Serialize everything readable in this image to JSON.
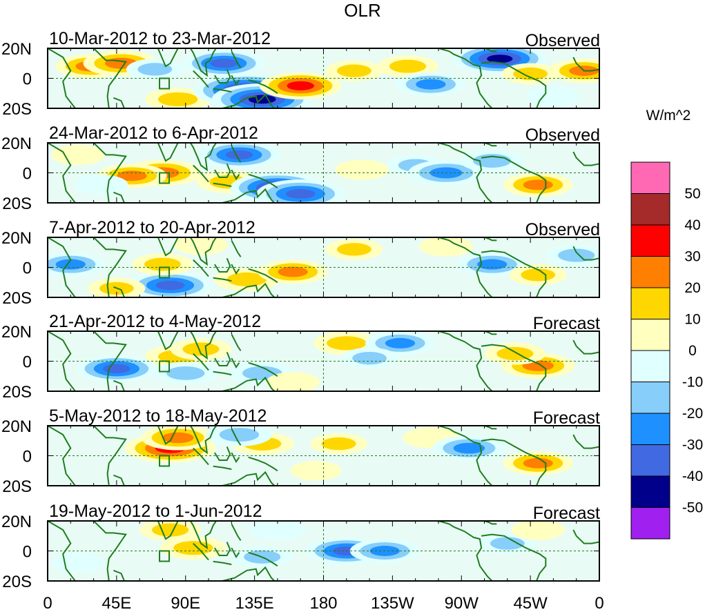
{
  "chart_data": {
    "type": "heatmap",
    "title": "OLR",
    "units": "W/m^2",
    "x_tick_labels": [
      "0",
      "45E",
      "90E",
      "135E",
      "180",
      "135W",
      "90W",
      "45W",
      "0"
    ],
    "y_tick_labels": [
      "20N",
      "0",
      "20S"
    ],
    "lon_range": [
      0,
      360
    ],
    "lat_range": [
      -20,
      20
    ],
    "colorbar": {
      "levels": [
        "-50",
        "-40",
        "-30",
        "-20",
        "-10",
        "0",
        "10",
        "20",
        "30",
        "40",
        "50"
      ],
      "colors": [
        "#a020f0",
        "#00008b",
        "#4169e1",
        "#1e90ff",
        "#87cefa",
        "#e0ffff",
        "#ffffc0",
        "#ffd700",
        "#ff7f00",
        "#ff0000",
        "#a52a2a",
        "#ff69b4"
      ]
    },
    "panels": [
      {
        "period": "10-Mar-2012 to 23-Mar-2012",
        "status": "Observed",
        "blobs": [
          {
            "lon": 28,
            "lat": 8,
            "v": 25
          },
          {
            "lon": 48,
            "lat": 10,
            "v": 30
          },
          {
            "lon": 85,
            "lat": -14,
            "v": 22
          },
          {
            "lon": 70,
            "lat": 6,
            "v": -15
          },
          {
            "lon": 115,
            "lat": 10,
            "v": -35
          },
          {
            "lon": 130,
            "lat": -8,
            "v": -55
          },
          {
            "lon": 140,
            "lat": -14,
            "v": -50
          },
          {
            "lon": 165,
            "lat": -5,
            "v": 35
          },
          {
            "lon": 200,
            "lat": 5,
            "v": 15
          },
          {
            "lon": 235,
            "lat": 8,
            "v": 18
          },
          {
            "lon": 250,
            "lat": -4,
            "v": -25
          },
          {
            "lon": 295,
            "lat": 13,
            "v": -45
          },
          {
            "lon": 315,
            "lat": 3,
            "v": 15
          },
          {
            "lon": 350,
            "lat": 5,
            "v": 25
          },
          {
            "lon": 330,
            "lat": -12,
            "v": -12
          }
        ]
      },
      {
        "period": "24-Mar-2012 to 6-Apr-2012",
        "status": "Observed",
        "blobs": [
          {
            "lon": 75,
            "lat": 0,
            "v": 32
          },
          {
            "lon": 55,
            "lat": -2,
            "v": 25
          },
          {
            "lon": 118,
            "lat": -6,
            "v": 20
          },
          {
            "lon": 125,
            "lat": 12,
            "v": -35
          },
          {
            "lon": 150,
            "lat": -10,
            "v": -45
          },
          {
            "lon": 165,
            "lat": -14,
            "v": -40
          },
          {
            "lon": 205,
            "lat": 2,
            "v": 12
          },
          {
            "lon": 240,
            "lat": 5,
            "v": -15
          },
          {
            "lon": 260,
            "lat": 0,
            "v": -30
          },
          {
            "lon": 290,
            "lat": 8,
            "v": -20
          },
          {
            "lon": 320,
            "lat": -8,
            "v": 25
          },
          {
            "lon": 20,
            "lat": 12,
            "v": 12
          },
          {
            "lon": 35,
            "lat": -8,
            "v": -12
          }
        ]
      },
      {
        "period": "7-Apr-2012 to 20-Apr-2012",
        "status": "Observed",
        "blobs": [
          {
            "lon": 15,
            "lat": 2,
            "v": -25
          },
          {
            "lon": 80,
            "lat": -12,
            "v": -38
          },
          {
            "lon": 75,
            "lat": 2,
            "v": 18
          },
          {
            "lon": 100,
            "lat": 15,
            "v": 12
          },
          {
            "lon": 130,
            "lat": -8,
            "v": 22
          },
          {
            "lon": 160,
            "lat": -3,
            "v": 25
          },
          {
            "lon": 200,
            "lat": 12,
            "v": 15
          },
          {
            "lon": 290,
            "lat": 2,
            "v": -25
          },
          {
            "lon": 260,
            "lat": 14,
            "v": 12
          },
          {
            "lon": 320,
            "lat": -5,
            "v": 15
          },
          {
            "lon": 345,
            "lat": 8,
            "v": -18
          },
          {
            "lon": 45,
            "lat": -14,
            "v": 15
          }
        ]
      },
      {
        "period": "21-Apr-2012 to 4-May-2012",
        "status": "Forecast",
        "blobs": [
          {
            "lon": 85,
            "lat": 3,
            "v": 22
          },
          {
            "lon": 100,
            "lat": 8,
            "v": 18
          },
          {
            "lon": 45,
            "lat": -5,
            "v": -35
          },
          {
            "lon": 90,
            "lat": -8,
            "v": -20
          },
          {
            "lon": 140,
            "lat": -8,
            "v": -22
          },
          {
            "lon": 195,
            "lat": 12,
            "v": 22
          },
          {
            "lon": 230,
            "lat": 12,
            "v": -25
          },
          {
            "lon": 210,
            "lat": 2,
            "v": -15
          },
          {
            "lon": 320,
            "lat": -3,
            "v": 28
          },
          {
            "lon": 305,
            "lat": 5,
            "v": 18
          },
          {
            "lon": 160,
            "lat": -14,
            "v": 12
          }
        ]
      },
      {
        "period": "5-May-2012 to 18-May-2012",
        "status": "Forecast",
        "blobs": [
          {
            "lon": 80,
            "lat": 5,
            "v": 42
          },
          {
            "lon": 85,
            "lat": 12,
            "v": 28
          },
          {
            "lon": 140,
            "lat": 8,
            "v": 20
          },
          {
            "lon": 190,
            "lat": 8,
            "v": 15
          },
          {
            "lon": 250,
            "lat": 12,
            "v": 14
          },
          {
            "lon": 275,
            "lat": 5,
            "v": -28
          },
          {
            "lon": 125,
            "lat": 14,
            "v": -22
          },
          {
            "lon": 320,
            "lat": -5,
            "v": 25
          },
          {
            "lon": 175,
            "lat": -10,
            "v": 10
          }
        ]
      },
      {
        "period": "19-May-2012 to 1-Jun-2012",
        "status": "Forecast",
        "blobs": [
          {
            "lon": 95,
            "lat": 2,
            "v": 22
          },
          {
            "lon": 80,
            "lat": 14,
            "v": 18
          },
          {
            "lon": 195,
            "lat": 0,
            "v": -35
          },
          {
            "lon": 220,
            "lat": 0,
            "v": -25
          },
          {
            "lon": 140,
            "lat": -4,
            "v": -18
          },
          {
            "lon": 150,
            "lat": 14,
            "v": -14
          },
          {
            "lon": 300,
            "lat": 5,
            "v": -15
          },
          {
            "lon": 320,
            "lat": 14,
            "v": 12
          },
          {
            "lon": 20,
            "lat": -8,
            "v": -12
          }
        ]
      }
    ]
  }
}
